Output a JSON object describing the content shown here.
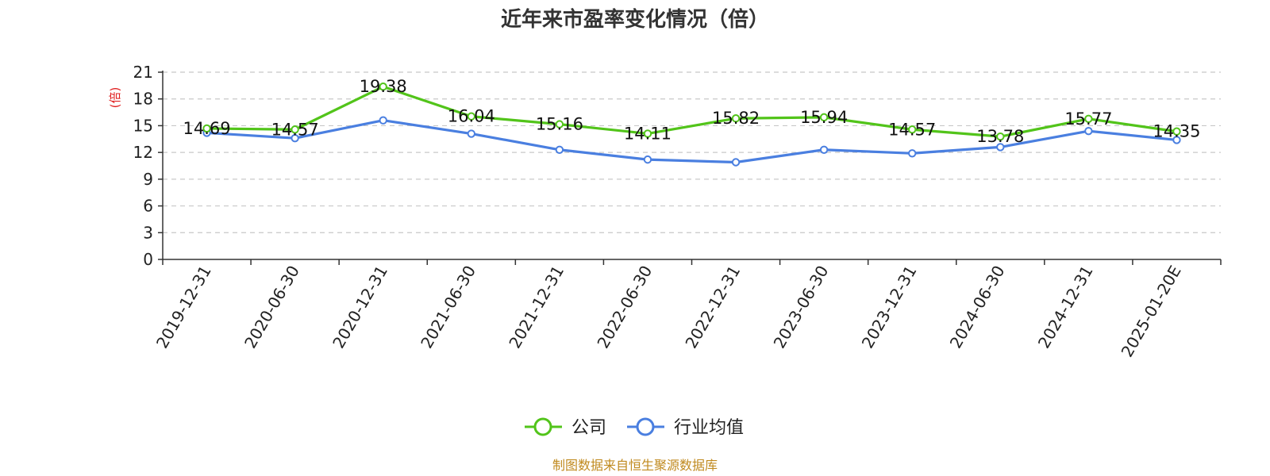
{
  "chart_data": {
    "type": "line",
    "title": "近年来市盈率变化情况（倍）",
    "ylabel": "(倍)",
    "ylim": [
      0,
      21
    ],
    "yticks": [
      0,
      3,
      6,
      9,
      12,
      15,
      18,
      21
    ],
    "grid": true,
    "legend_position": "bottom",
    "categories": [
      "2019-12-31",
      "2020-06-30",
      "2020-12-31",
      "2021-06-30",
      "2021-12-31",
      "2022-06-30",
      "2022-12-31",
      "2023-06-30",
      "2023-12-31",
      "2024-06-30",
      "2024-12-31",
      "2025-01-20E"
    ],
    "series": [
      {
        "name": "公司",
        "color": "#52c41a",
        "values": [
          14.69,
          14.57,
          19.38,
          16.04,
          15.16,
          14.11,
          15.82,
          15.94,
          14.57,
          13.78,
          15.77,
          14.35
        ],
        "data_labels": [
          "14.69",
          "14.57",
          "19.38",
          "16.04",
          "15.16",
          "14.11",
          "15.82",
          "15.94",
          "14.57",
          "13.78",
          "15.77",
          "14.35"
        ]
      },
      {
        "name": "行业均值",
        "color": "#4a7fe0",
        "values": [
          14.2,
          13.6,
          15.6,
          14.1,
          12.3,
          11.2,
          10.9,
          12.3,
          11.9,
          12.6,
          14.4,
          13.4
        ]
      }
    ],
    "source": "制图数据来自恒生聚源数据库",
    "ylabel_color": "#e02020",
    "source_color": "#c08a1f"
  }
}
